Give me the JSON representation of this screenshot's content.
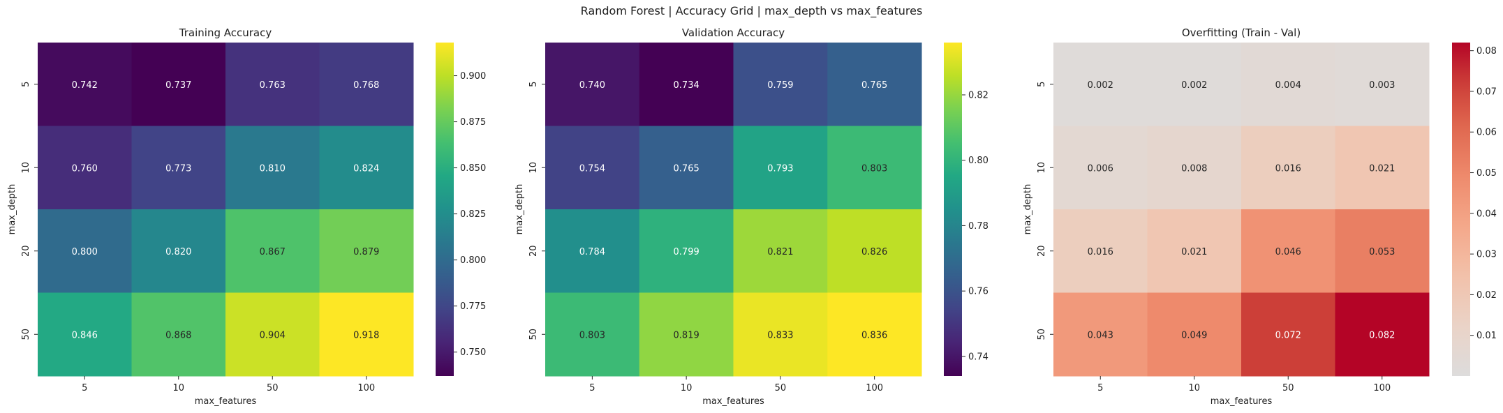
{
  "suptitle": "Random Forest | Accuracy Grid | max_depth vs max_features",
  "chart_data": [
    {
      "type": "heatmap",
      "title": "Training Accuracy",
      "xlabel": "max_features",
      "ylabel": "max_depth",
      "x_categories": [
        "5",
        "10",
        "50",
        "100"
      ],
      "y_categories": [
        "5",
        "10",
        "20",
        "50"
      ],
      "values": [
        [
          0.742,
          0.737,
          0.763,
          0.768
        ],
        [
          0.76,
          0.773,
          0.81,
          0.824
        ],
        [
          0.8,
          0.82,
          0.867,
          0.879
        ],
        [
          0.846,
          0.868,
          0.904,
          0.918
        ]
      ],
      "colormap": "viridis",
      "vmin": 0.737,
      "vmax": 0.918,
      "colorbar_ticks": [
        0.75,
        0.775,
        0.8,
        0.825,
        0.85,
        0.875,
        0.9
      ],
      "colorbar_tick_labels": [
        "0.750",
        "0.775",
        "0.800",
        "0.825",
        "0.850",
        "0.875",
        "0.900"
      ]
    },
    {
      "type": "heatmap",
      "title": "Validation Accuracy",
      "xlabel": "max_features",
      "ylabel": "max_depth",
      "x_categories": [
        "5",
        "10",
        "50",
        "100"
      ],
      "y_categories": [
        "5",
        "10",
        "20",
        "50"
      ],
      "values": [
        [
          0.74,
          0.734,
          0.759,
          0.765
        ],
        [
          0.754,
          0.765,
          0.793,
          0.803
        ],
        [
          0.784,
          0.799,
          0.821,
          0.826
        ],
        [
          0.803,
          0.819,
          0.833,
          0.836
        ]
      ],
      "colormap": "viridis",
      "vmin": 0.734,
      "vmax": 0.836,
      "colorbar_ticks": [
        0.74,
        0.76,
        0.78,
        0.8,
        0.82
      ],
      "colorbar_tick_labels": [
        "0.74",
        "0.76",
        "0.78",
        "0.80",
        "0.82"
      ]
    },
    {
      "type": "heatmap",
      "title": "Overfitting (Train - Val)",
      "xlabel": "max_features",
      "ylabel": "max_depth",
      "x_categories": [
        "5",
        "10",
        "50",
        "100"
      ],
      "y_categories": [
        "5",
        "10",
        "20",
        "50"
      ],
      "values": [
        [
          0.002,
          0.002,
          0.004,
          0.003
        ],
        [
          0.006,
          0.008,
          0.016,
          0.021
        ],
        [
          0.016,
          0.021,
          0.046,
          0.053
        ],
        [
          0.043,
          0.049,
          0.072,
          0.082
        ]
      ],
      "colormap": "coolwarm-upper",
      "vmin": 0.0,
      "vmax": 0.082,
      "colorbar_ticks": [
        0.01,
        0.02,
        0.03,
        0.04,
        0.05,
        0.06,
        0.07,
        0.08
      ],
      "colorbar_tick_labels": [
        "0.01",
        "0.02",
        "0.03",
        "0.04",
        "0.05",
        "0.06",
        "0.07",
        "0.08"
      ]
    }
  ]
}
